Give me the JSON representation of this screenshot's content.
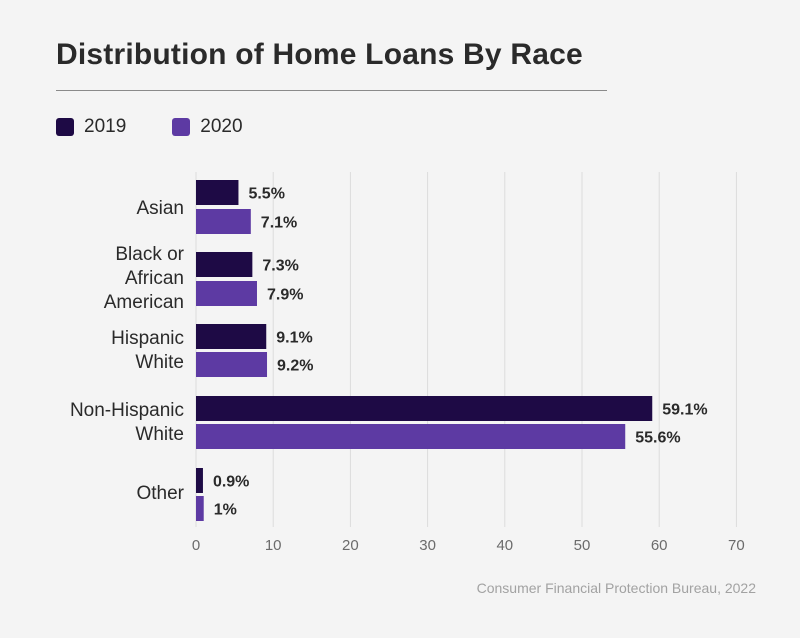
{
  "chart_data": {
    "type": "bar",
    "orientation": "horizontal",
    "title": "Distribution of Home Loans By Race",
    "categories": [
      [
        "Asian"
      ],
      [
        "Black or",
        "African",
        "American"
      ],
      [
        "Hispanic",
        "White"
      ],
      [
        "Non-Hispanic",
        "White"
      ],
      [
        "Other"
      ]
    ],
    "series": [
      {
        "name": "2019",
        "color": "#1e0a45",
        "values": [
          5.5,
          7.3,
          9.1,
          59.1,
          0.9
        ],
        "labels": [
          "5.5%",
          "7.3%",
          "9.1%",
          "59.1%",
          "0.9%"
        ]
      },
      {
        "name": "2020",
        "color": "#5d3aa3",
        "values": [
          7.1,
          7.9,
          9.2,
          55.6,
          1
        ],
        "labels": [
          "7.1%",
          "7.9%",
          "9.2%",
          "55.6%",
          "1%"
        ]
      }
    ],
    "xlim": [
      0,
      70
    ],
    "xticks": [
      0,
      10,
      20,
      30,
      40,
      50,
      60,
      70
    ],
    "grid": true,
    "legend_position": "top-left"
  },
  "source": "Consumer Financial Protection Bureau, 2022"
}
